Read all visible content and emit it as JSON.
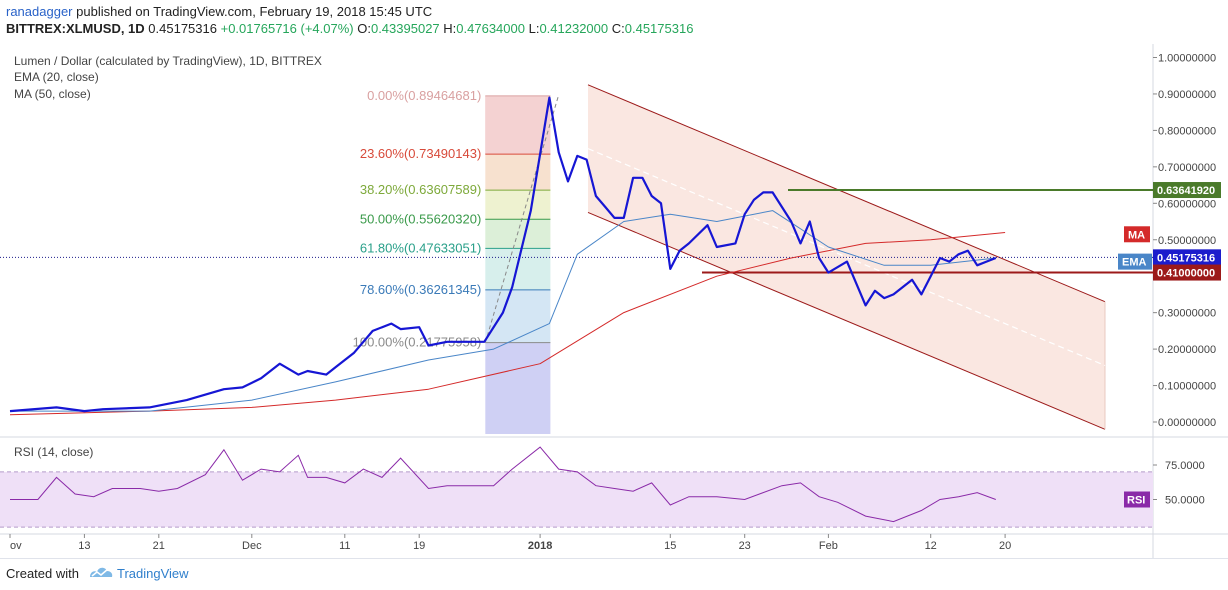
{
  "header": {
    "user": "ranadagger",
    "published_text": "published on TradingView.com, February 19, 2018 15:45 UTC",
    "symbol": "BITTREX:XLMUSD, 1D",
    "last": "0.45175316",
    "change": "+0.01765716 (+4.07%)",
    "o_label": "O:",
    "o_val": "0.43395027",
    "h_label": "H:",
    "h_val": "0.47634000",
    "l_label": "L:",
    "l_val": "0.41232000",
    "c_label": "C:",
    "c_val": "0.45175316"
  },
  "legend": {
    "main": "Lumen / Dollar (calculated by TradingView), 1D, BITTREX",
    "ema": "EMA (20, close)",
    "ma": "MA (50, close)",
    "rsi": "RSI (14, close)"
  },
  "footer": {
    "created": "Created with",
    "brand": "TradingView"
  },
  "colors": {
    "price": "#1616d4",
    "ema": "#4a86c8",
    "ma": "#d42a2a",
    "channel": "#9c1a1a",
    "channel_fill": "#f9e3dc",
    "resistance": "#4a7a2a",
    "support": "#9c1a1a",
    "rsi": "#8a2aa8",
    "rsi_band": "#efe0f7"
  },
  "chart_data": [
    {
      "type": "line",
      "title": "Lumen / Dollar (calculated by TradingView), 1D, BITTREX",
      "y_axis_ticks": [
        "1.00000000",
        "0.90000000",
        "0.80000000",
        "0.70000000",
        "0.60000000",
        "0.50000000",
        "0.40000000",
        "0.30000000",
        "0.20000000",
        "0.10000000",
        "0.00000000"
      ],
      "ylim": [
        0,
        1
      ],
      "x_axis_ticks": [
        "ov",
        "13",
        "21",
        "Dec",
        "11",
        "19",
        "2018",
        "15",
        "23",
        "Feb",
        "12",
        "20"
      ],
      "series": [
        {
          "name": "Price",
          "x": [
            "2017-11-05",
            "2017-11-10",
            "2017-11-13",
            "2017-11-15",
            "2017-11-20",
            "2017-11-24",
            "2017-11-28",
            "2017-11-30",
            "2017-12-02",
            "2017-12-04",
            "2017-12-06",
            "2017-12-07",
            "2017-12-09",
            "2017-12-10",
            "2017-12-12",
            "2017-12-14",
            "2017-12-16",
            "2017-12-17",
            "2017-12-19",
            "2017-12-20",
            "2017-12-22",
            "2017-12-26",
            "2017-12-28",
            "2017-12-29",
            "2017-12-31",
            "2018-01-02",
            "2018-01-03",
            "2018-01-04",
            "2018-01-05",
            "2018-01-06",
            "2018-01-07",
            "2018-01-08",
            "2018-01-09",
            "2018-01-10",
            "2018-01-11",
            "2018-01-12",
            "2018-01-13",
            "2018-01-14",
            "2018-01-15",
            "2018-01-16",
            "2018-01-17",
            "2018-01-19",
            "2018-01-20",
            "2018-01-22",
            "2018-01-23",
            "2018-01-24",
            "2018-01-25",
            "2018-01-26",
            "2018-01-28",
            "2018-01-29",
            "2018-01-30",
            "2018-01-31",
            "2018-02-01",
            "2018-02-03",
            "2018-02-05",
            "2018-02-06",
            "2018-02-07",
            "2018-02-08",
            "2018-02-10",
            "2018-02-11",
            "2018-02-12",
            "2018-02-13",
            "2018-02-14",
            "2018-02-15",
            "2018-02-16",
            "2018-02-17",
            "2018-02-18",
            "2018-02-19"
          ],
          "values": [
            0.03,
            0.04,
            0.03,
            0.035,
            0.04,
            0.06,
            0.09,
            0.095,
            0.12,
            0.16,
            0.13,
            0.14,
            0.13,
            0.15,
            0.19,
            0.25,
            0.27,
            0.255,
            0.26,
            0.21,
            0.22,
            0.22,
            0.3,
            0.37,
            0.58,
            0.89,
            0.74,
            0.66,
            0.73,
            0.72,
            0.62,
            0.59,
            0.56,
            0.56,
            0.67,
            0.67,
            0.62,
            0.6,
            0.42,
            0.47,
            0.49,
            0.54,
            0.48,
            0.49,
            0.57,
            0.61,
            0.63,
            0.63,
            0.55,
            0.49,
            0.55,
            0.45,
            0.41,
            0.44,
            0.32,
            0.36,
            0.34,
            0.35,
            0.39,
            0.35,
            0.4,
            0.45,
            0.44,
            0.46,
            0.47,
            0.43,
            0.44,
            0.45
          ]
        },
        {
          "name": "EMA (20, close)",
          "x": [
            "2017-11-05",
            "2017-11-20",
            "2017-12-01",
            "2017-12-10",
            "2017-12-20",
            "2017-12-27",
            "2018-01-02",
            "2018-01-05",
            "2018-01-10",
            "2018-01-15",
            "2018-01-20",
            "2018-01-26",
            "2018-02-01",
            "2018-02-07",
            "2018-02-12",
            "2018-02-19"
          ],
          "values": [
            0.03,
            0.03,
            0.06,
            0.11,
            0.17,
            0.2,
            0.27,
            0.46,
            0.55,
            0.57,
            0.55,
            0.58,
            0.48,
            0.43,
            0.43,
            0.45
          ]
        },
        {
          "name": "MA (50, close)",
          "x": [
            "2017-11-05",
            "2017-11-20",
            "2017-12-01",
            "2017-12-10",
            "2017-12-20",
            "2018-01-01",
            "2018-01-10",
            "2018-01-20",
            "2018-01-28",
            "2018-02-05",
            "2018-02-12",
            "2018-02-20"
          ],
          "values": [
            0.02,
            0.03,
            0.04,
            0.06,
            0.09,
            0.16,
            0.3,
            0.4,
            0.45,
            0.49,
            0.5,
            0.52
          ]
        }
      ],
      "fibonacci": [
        {
          "label": "0.00%(0.89464681)",
          "value": 0.89464681,
          "color": "#d9a0a0"
        },
        {
          "label": "23.60%(0.73490143)",
          "value": 0.73490143,
          "color": "#d84a3a"
        },
        {
          "label": "38.20%(0.63607589)",
          "value": 0.63607589,
          "color": "#7da93a"
        },
        {
          "label": "50.00%(0.55620320)",
          "value": 0.5562032,
          "color": "#3a9a4a"
        },
        {
          "label": "61.80%(0.47633051)",
          "value": 0.47633051,
          "color": "#2aa08a"
        },
        {
          "label": "78.60%(0.36261345)",
          "value": 0.36261345,
          "color": "#3a7ab8"
        },
        {
          "label": "100.00%(0.21775958)",
          "value": 0.21775958,
          "color": "#8a8a8a"
        }
      ],
      "horizontal_levels": [
        {
          "label": "0.63641920",
          "value": 0.6364192,
          "color": "#4a7a2a"
        },
        {
          "label": "0.41000000",
          "value": 0.41,
          "color": "#9c1a1a"
        }
      ],
      "price_labels": [
        {
          "label": "0.45175316",
          "value": 0.45175316,
          "color": "#1c1ccc"
        }
      ],
      "tags": {
        "ma": "MA",
        "ema": "EMA"
      }
    },
    {
      "type": "line",
      "title": "RSI (14, close)",
      "y_axis_ticks": [
        "75.0000",
        "50.0000"
      ],
      "band": [
        30,
        70
      ],
      "ylim": [
        20,
        100
      ],
      "series": [
        {
          "name": "RSI (14, close)",
          "x": [
            "2017-11-05",
            "2017-11-08",
            "2017-11-10",
            "2017-11-12",
            "2017-11-14",
            "2017-11-16",
            "2017-11-19",
            "2017-11-21",
            "2017-11-23",
            "2017-11-26",
            "2017-11-28",
            "2017-11-30",
            "2017-12-02",
            "2017-12-04",
            "2017-12-06",
            "2017-12-07",
            "2017-12-09",
            "2017-12-11",
            "2017-12-13",
            "2017-12-15",
            "2017-12-17",
            "2017-12-20",
            "2017-12-22",
            "2017-12-24",
            "2017-12-27",
            "2017-12-29",
            "2018-01-01",
            "2018-01-03",
            "2018-01-05",
            "2018-01-07",
            "2018-01-09",
            "2018-01-11",
            "2018-01-13",
            "2018-01-15",
            "2018-01-17",
            "2018-01-20",
            "2018-01-23",
            "2018-01-27",
            "2018-01-29",
            "2018-01-31",
            "2018-02-02",
            "2018-02-05",
            "2018-02-08",
            "2018-02-11",
            "2018-02-13",
            "2018-02-15",
            "2018-02-17",
            "2018-02-19"
          ],
          "values": [
            50,
            50,
            66,
            54,
            52,
            58,
            58,
            56,
            58,
            68,
            86,
            64,
            72,
            70,
            82,
            66,
            66,
            62,
            72,
            66,
            80,
            58,
            60,
            60,
            60,
            72,
            88,
            72,
            70,
            60,
            58,
            56,
            62,
            46,
            52,
            52,
            50,
            60,
            62,
            52,
            48,
            38,
            34,
            42,
            50,
            52,
            55,
            50
          ]
        }
      ]
    }
  ]
}
